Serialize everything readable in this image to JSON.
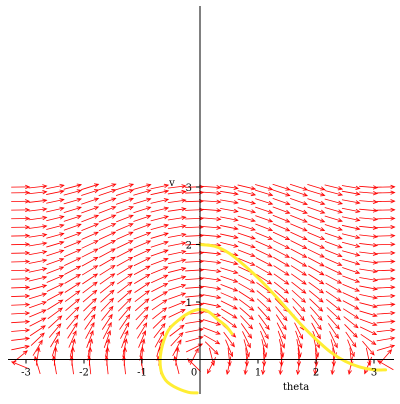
{
  "chart_data": {
    "type": "scatter",
    "kind": "direction-field",
    "title": "",
    "xlabel": "theta",
    "ylabel": "v",
    "xlim": [
      -3.2,
      3.2
    ],
    "ylim": [
      -0.2,
      3.05
    ],
    "x_ticks": [
      -3,
      -2,
      -1,
      0,
      1,
      2,
      3
    ],
    "y_ticks": [
      1,
      2,
      3
    ],
    "x_tick_labels": [
      "-3",
      "-2",
      "-1",
      "0",
      "1",
      "2",
      "3"
    ],
    "y_tick_labels": [
      "1",
      "2",
      "3"
    ],
    "grid": false,
    "vector_field": {
      "color": "#ff0000",
      "dx": "v",
      "dy": "-sin(theta)",
      "theta_samples": [
        -3.1,
        -2.8,
        -2.5,
        -2.2,
        -1.9,
        -1.6,
        -1.3,
        -1.0,
        -0.7,
        -0.4,
        -0.1,
        0.2,
        0.5,
        0.8,
        1.1,
        1.4,
        1.7,
        2.0,
        2.3,
        2.6,
        2.9,
        3.2
      ],
      "v_samples": [
        -0.1,
        0.05,
        0.2,
        0.35,
        0.5,
        0.65,
        0.8,
        0.95,
        1.1,
        1.25,
        1.4,
        1.55,
        1.7,
        1.85,
        2.0,
        2.15,
        2.3,
        2.45,
        2.6,
        2.75,
        2.9,
        3.0
      ]
    },
    "trajectories": [
      {
        "color": "#ffee33",
        "points": [
          [
            0.55,
            0.45
          ],
          [
            0.45,
            0.58
          ],
          [
            0.3,
            0.7
          ],
          [
            0.15,
            0.83
          ],
          [
            0.0,
            0.87
          ],
          [
            -0.15,
            0.83
          ],
          [
            -0.35,
            0.7
          ],
          [
            -0.55,
            0.5
          ],
          [
            -0.67,
            0.15
          ],
          [
            -0.68,
            -0.15
          ],
          [
            -0.6,
            -0.35
          ],
          [
            -0.45,
            -0.47
          ],
          [
            -0.2,
            -0.57
          ],
          [
            -0.05,
            -0.58
          ]
        ]
      },
      {
        "color": "#ffee33",
        "points": [
          [
            0.0,
            2.0
          ],
          [
            0.25,
            1.97
          ],
          [
            0.5,
            1.85
          ],
          [
            0.75,
            1.65
          ],
          [
            1.0,
            1.42
          ],
          [
            1.25,
            1.16
          ],
          [
            1.5,
            0.88
          ],
          [
            1.75,
            0.6
          ],
          [
            2.0,
            0.35
          ],
          [
            2.25,
            0.13
          ],
          [
            2.5,
            -0.03
          ],
          [
            2.75,
            -0.13
          ],
          [
            3.0,
            -0.18
          ],
          [
            3.2,
            -0.18
          ]
        ]
      }
    ]
  }
}
